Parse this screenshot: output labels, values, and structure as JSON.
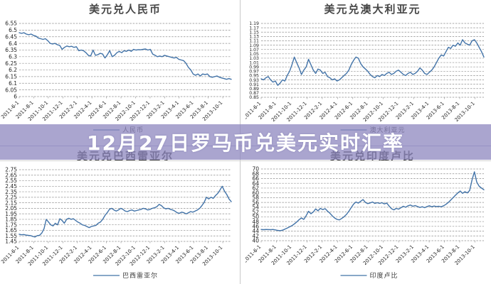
{
  "banner": {
    "text": "12月27日罗马币兑美元实时汇率",
    "background_color": "#8c86be",
    "text_color": "#ffffff"
  },
  "chart_style": {
    "line_color": "#4273a8",
    "grid_color": "#8f8f8f",
    "title_color": "#474747",
    "axis_text_color": "#222222",
    "legend_text_color": "#3a3a3a"
  },
  "chart_data": [
    {
      "type": "line",
      "title": "美元兑人民币",
      "legend": "人民币",
      "ylim": [
        6.0,
        6.55
      ],
      "y_tick_labels": [
        "6.55",
        "6.5",
        "6.45",
        "6.4",
        "6.35",
        "6.3",
        "6.25",
        "6.2",
        "6.15",
        "6.1",
        "6.05",
        "6"
      ],
      "x_tick_labels": [
        "2011-6-1",
        "2011-8-1",
        "2011-10-1",
        "2011-12-1",
        "2012-2-1",
        "2012-4-1",
        "2012-6-1",
        "2012-8-1",
        "2012-10-1",
        "2012-12-1",
        "2013-2-1",
        "2013-4-1",
        "2013-6-1",
        "2013-8-1",
        "2013-10-1"
      ],
      "values": [
        6.48,
        6.475,
        6.48,
        6.47,
        6.465,
        6.47,
        6.46,
        6.455,
        6.44,
        6.435,
        6.43,
        6.435,
        6.42,
        6.4,
        6.395,
        6.4,
        6.39,
        6.385,
        6.355,
        6.37,
        6.38,
        6.375,
        6.378,
        6.37,
        6.375,
        6.345,
        6.35,
        6.345,
        6.33,
        6.31,
        6.305,
        6.35,
        6.31,
        6.315,
        6.325,
        6.32,
        6.29,
        6.315,
        6.345,
        6.3,
        6.31,
        6.33,
        6.34,
        6.33,
        6.345,
        6.34,
        6.35,
        6.34,
        6.355,
        6.35,
        6.353,
        6.352,
        6.355,
        6.358,
        6.35,
        6.355,
        6.32,
        6.31,
        6.3,
        6.305,
        6.3,
        6.31,
        6.305,
        6.3,
        6.295,
        6.29,
        6.295,
        6.28,
        6.275,
        6.27,
        6.25,
        6.22,
        6.2,
        6.17,
        6.16,
        6.17,
        6.155,
        6.17,
        6.165,
        6.17,
        6.15,
        6.145,
        6.15,
        6.155,
        6.145,
        6.14,
        6.135,
        6.13,
        6.135,
        6.13
      ]
    },
    {
      "type": "line",
      "title": "美元兑澳大利亚元",
      "legend": "澳大利亚元",
      "ylim": [
        0.85,
        1.19
      ],
      "y_tick_labels": [
        "1.19",
        "1.17",
        "1.15",
        "1.13",
        "1.11",
        "1.09",
        "1.07",
        "1.05",
        "1.03",
        "1.01",
        "0.99",
        "0.97",
        "0.95",
        "0.93",
        "0.91",
        "0.89",
        "0.87",
        "0.85"
      ],
      "x_tick_labels": [
        "2011-6-1",
        "2011-8-1",
        "2011-10-1",
        "2011-12-1",
        "2012-2-1",
        "2012-4-1",
        "2012-6-1",
        "2012-8-1",
        "2012-10-1",
        "2012-12-1",
        "2013-2-1",
        "2013-4-1",
        "2013-6-1",
        "2013-8-1",
        "2013-10-1"
      ],
      "values": [
        0.935,
        0.93,
        0.94,
        0.945,
        0.93,
        0.92,
        0.925,
        0.905,
        0.915,
        0.93,
        0.925,
        0.95,
        0.97,
        1.0,
        1.035,
        1.01,
        0.985,
        0.955,
        0.975,
        0.99,
        1.025,
        1.0,
        0.975,
        0.96,
        0.98,
        0.975,
        0.96,
        0.965,
        0.945,
        0.94,
        0.93,
        0.935,
        0.925,
        0.93,
        0.94,
        0.95,
        0.96,
        0.975,
        1.0,
        1.02,
        1.035,
        1.03,
        1.005,
        0.99,
        0.98,
        0.97,
        0.955,
        0.945,
        0.94,
        0.95,
        0.945,
        0.955,
        0.95,
        0.96,
        0.965,
        0.955,
        0.96,
        0.97,
        0.975,
        0.965,
        0.955,
        0.95,
        0.96,
        0.965,
        0.955,
        0.96,
        0.97,
        0.985,
        0.975,
        0.96,
        0.955,
        0.965,
        0.975,
        0.99,
        1.01,
        1.03,
        1.045,
        1.04,
        1.06,
        1.08,
        1.075,
        1.09,
        1.085,
        1.1,
        1.09,
        1.115,
        1.1,
        1.095,
        1.09,
        1.11,
        1.115,
        1.1,
        1.08,
        1.06,
        1.035
      ]
    },
    {
      "type": "line",
      "title": "美元兑巴西雷亚尔",
      "legend": "巴西雷亚尔",
      "ylim": [
        1.45,
        2.75
      ],
      "y_tick_labels": [
        "2.75",
        "2.65",
        "2.55",
        "2.45",
        "2.35",
        "2.25",
        "2.15",
        "2.05",
        "1.95",
        "1.85",
        "1.75",
        "1.65",
        "1.55",
        "1.45"
      ],
      "x_tick_labels": [
        "2011-6-1",
        "2011-8-1",
        "2011-10-1",
        "2011-12-1",
        "2012-2-1",
        "2012-4-1",
        "2012-6-1",
        "2012-8-1",
        "2012-10-1",
        "2012-12-1",
        "2013-2-1",
        "2013-4-1",
        "2013-6-1",
        "2013-8-1",
        "2013-10-1"
      ],
      "values": [
        1.58,
        1.57,
        1.575,
        1.565,
        1.56,
        1.555,
        1.54,
        1.53,
        1.555,
        1.56,
        1.6,
        1.68,
        1.85,
        1.8,
        1.75,
        1.73,
        1.78,
        1.75,
        1.86,
        1.83,
        1.78,
        1.85,
        1.87,
        1.85,
        1.86,
        1.83,
        1.8,
        1.78,
        1.75,
        1.74,
        1.72,
        1.7,
        1.72,
        1.73,
        1.74,
        1.78,
        1.8,
        1.85,
        1.92,
        1.97,
        2.03,
        2.05,
        2.02,
        2.0,
        2.02,
        2.05,
        2.03,
        2.0,
        1.99,
        2.01,
        2.02,
        2.0,
        2.01,
        2.02,
        2.03,
        2.05,
        2.04,
        2.02,
        2.03,
        2.05,
        2.06,
        2.08,
        2.12,
        2.1,
        2.06,
        2.04,
        2.05,
        2.03,
        2.02,
        2.0,
        1.97,
        1.96,
        1.98,
        1.97,
        1.95,
        1.97,
        1.99,
        1.98,
        2.0,
        2.02,
        2.05,
        2.1,
        2.16,
        2.25,
        2.22,
        2.25,
        2.23,
        2.28,
        2.32,
        2.38,
        2.45,
        2.36,
        2.3,
        2.22,
        2.17
      ]
    },
    {
      "type": "line",
      "title": "美元兑印度卢比",
      "legend": "印度卢比",
      "ylim": [
        40,
        70
      ],
      "y_tick_labels": [
        "70",
        "68",
        "66",
        "64",
        "62",
        "60",
        "58",
        "56",
        "54",
        "52",
        "50",
        "48",
        "46",
        "44",
        "42",
        "40"
      ],
      "x_tick_labels": [
        "2011-6-1",
        "2011-8-1",
        "2011-10-1",
        "2011-12-1",
        "2012-2-1",
        "2012-4-1",
        "2012-6-1",
        "2012-8-1",
        "2012-10-1",
        "2012-12-1",
        "2013-2-1",
        "2013-4-1",
        "2013-6-1",
        "2013-8-1",
        "2013-10-1"
      ],
      "values": [
        44.7,
        44.6,
        44.7,
        44.65,
        44.6,
        44.7,
        44.5,
        44.3,
        44.2,
        44.4,
        44.8,
        45.3,
        45.8,
        46.3,
        47.0,
        47.8,
        48.8,
        49.5,
        48.9,
        50.5,
        52.3,
        51.3,
        52.0,
        53.3,
        52.5,
        53.5,
        53.0,
        53.4,
        52.4,
        51.5,
        50.4,
        49.5,
        48.9,
        48.7,
        49.3,
        50.0,
        51.0,
        52.3,
        53.8,
        55.3,
        56.2,
        55.7,
        56.5,
        57.2,
        56.0,
        55.5,
        55.8,
        56.2,
        55.6,
        55.9,
        55.6,
        55.9,
        55.4,
        55.7,
        54.5,
        53.4,
        52.9,
        53.5,
        53.2,
        53.8,
        54.4,
        54.0,
        54.6,
        54.9,
        54.4,
        54.7,
        54.3,
        53.9,
        54.2,
        53.8,
        54.3,
        54.6,
        54.2,
        54.5,
        54.3,
        54.4,
        54.2,
        54.6,
        55.2,
        56.0,
        57.0,
        58.0,
        59.0,
        60.0,
        60.8,
        59.8,
        60.5,
        60.0,
        61.0,
        65.5,
        68.8,
        64.5,
        62.8,
        62.0,
        61.3
      ]
    }
  ]
}
